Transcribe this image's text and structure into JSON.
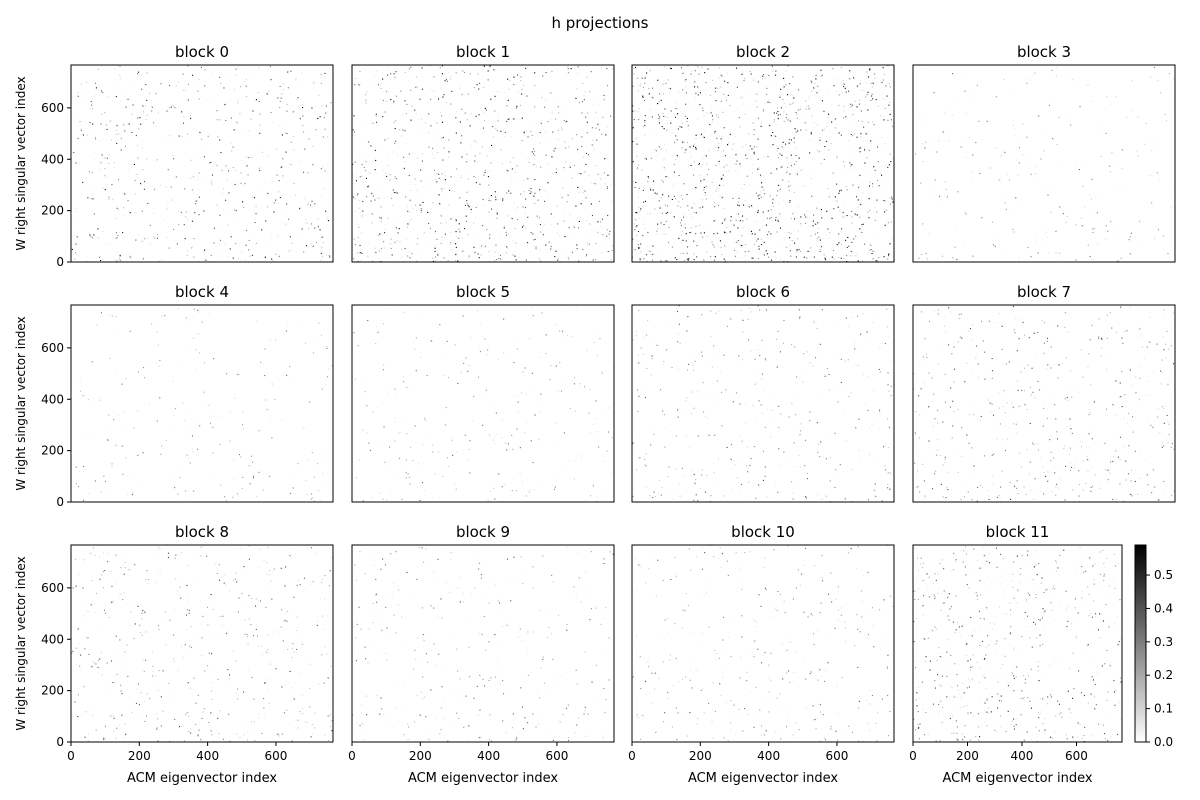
{
  "figure": {
    "suptitle": "h projections"
  },
  "chart_data": {
    "type": "heatmap",
    "grid": "3x4 panels, no gridlines",
    "colormap": "gray_r (white = 0, black = max)",
    "xlabel": "ACM eigenvector index",
    "ylabel": "W right singular vector index",
    "xlim": [
      0,
      767
    ],
    "ylim": [
      0,
      767
    ],
    "xticks": [
      0,
      200,
      400,
      600
    ],
    "yticks": [
      0,
      200,
      400,
      600
    ],
    "colorbar": {
      "range": [
        0.0,
        0.59
      ],
      "ticks": [
        "0.0",
        "0.1",
        "0.2",
        "0.3",
        "0.4",
        "0.5"
      ]
    },
    "panels": [
      {
        "title": "block 0",
        "density": 0.3,
        "tint": 0.55
      },
      {
        "title": "block 1",
        "density": 0.45,
        "tint": 0.6
      },
      {
        "title": "block 2",
        "density": 0.6,
        "tint": 0.7
      },
      {
        "title": "block 3",
        "density": 0.12,
        "tint": 0.35
      },
      {
        "title": "block 4",
        "density": 0.12,
        "tint": 0.35
      },
      {
        "title": "block 5",
        "density": 0.14,
        "tint": 0.35
      },
      {
        "title": "block 6",
        "density": 0.2,
        "tint": 0.4
      },
      {
        "title": "block 7",
        "density": 0.26,
        "tint": 0.45
      },
      {
        "title": "block 8",
        "density": 0.26,
        "tint": 0.45
      },
      {
        "title": "block 9",
        "density": 0.18,
        "tint": 0.4
      },
      {
        "title": "block 10",
        "density": 0.18,
        "tint": 0.4
      },
      {
        "title": "block 11",
        "density": 0.3,
        "tint": 0.5
      }
    ]
  },
  "colors": {
    "axis": "#000000",
    "background": "#ffffff",
    "cell_dark": "#000000"
  }
}
